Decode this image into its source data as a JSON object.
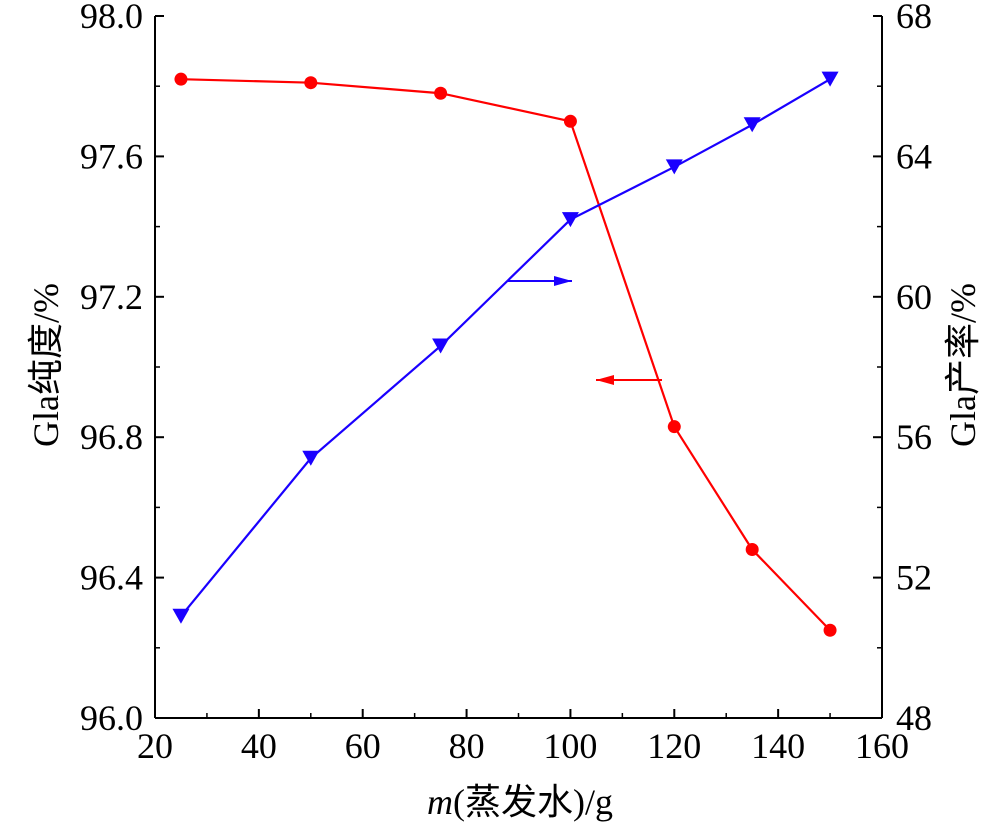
{
  "chart_data": {
    "type": "line",
    "xlabel": "m(蒸发水)/g",
    "xlabel_parts": {
      "var": "m",
      "rest": "(蒸发水)/g"
    },
    "ylabel_left": "Gla纯度/%",
    "ylabel_right": "Gla产率/%",
    "xlim": [
      20,
      160
    ],
    "ylim_left": [
      96.0,
      98.0
    ],
    "ylim_right": [
      48,
      68
    ],
    "x_ticks": [
      "20",
      "40",
      "60",
      "80",
      "100",
      "120",
      "140",
      "160"
    ],
    "y_left_ticks": [
      "96.0",
      "96.4",
      "96.8",
      "97.2",
      "97.6",
      "98.0"
    ],
    "y_right_ticks": [
      "48",
      "52",
      "56",
      "60",
      "64",
      "68"
    ],
    "grid": false,
    "series": [
      {
        "axis": "left",
        "color": "#ff0000",
        "marker": "circle",
        "x": [
          25,
          50,
          75,
          100,
          120,
          135,
          150
        ],
        "values": [
          97.82,
          97.81,
          97.78,
          97.7,
          96.83,
          96.48,
          96.25
        ]
      },
      {
        "axis": "right",
        "color": "#1a00ff",
        "marker": "triangle-down",
        "x": [
          25,
          50,
          75,
          100,
          120,
          135,
          150
        ],
        "values": [
          50.9,
          55.4,
          58.6,
          62.2,
          63.7,
          64.9,
          66.2
        ]
      }
    ],
    "annotations": [
      {
        "type": "arrow",
        "direction": "right",
        "series_axis": "right",
        "color": "#1a00ff"
      },
      {
        "type": "arrow",
        "direction": "left",
        "series_axis": "left",
        "color": "#ff0000"
      }
    ]
  }
}
